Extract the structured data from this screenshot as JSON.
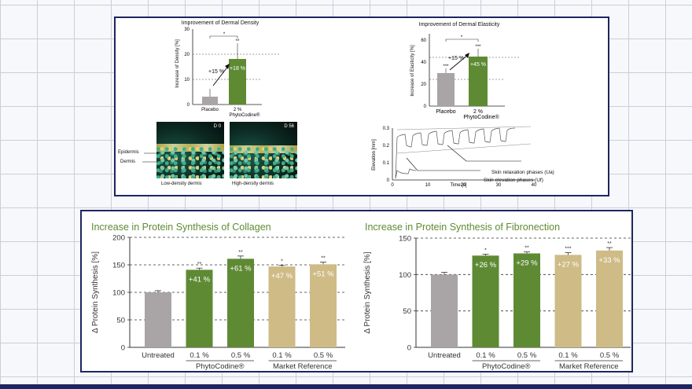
{
  "top": {
    "density": {
      "title": "Improvement of Dermal Density",
      "ylabel": "Increase of Density [%]",
      "yticks": [
        "0",
        "10",
        "20",
        "30"
      ],
      "cat1": "Placebo",
      "cat2a": "2 %",
      "cat2b": "PhytoCodine®",
      "bar_label": "+18 %",
      "arrow_label": "+15 %",
      "sig_top": "*",
      "sig_bar": "**"
    },
    "elasticity": {
      "title": "Improvement of Dermal Elasticity",
      "ylabel": "Increase of Elasticity [%]",
      "yticks": [
        "0",
        "20",
        "40",
        "60"
      ],
      "cat1": "Placebo",
      "cat2a": "2 %",
      "cat2b": "PhytoCodine®",
      "bar_label": "+45 %",
      "arrow_label": "+15 %",
      "sig_top": "*",
      "sig_bar1": "***",
      "sig_bar2": "***"
    },
    "micro": {
      "tag0": "D 0",
      "tag56": "D 56",
      "label_epidermis": "Epidermis",
      "label_dermis": "Dermis",
      "caption_low": "Low-density dermis",
      "caption_high": "High-density dermis"
    },
    "wave": {
      "ylabel": "Elevation [mm]",
      "xlabel": "Time [s]",
      "yticks": [
        "0",
        "0.1",
        "0.2",
        "0.3"
      ],
      "xticks": [
        "0",
        "10",
        "20",
        "30",
        "40"
      ],
      "annot1": "Skin relaxation phases (Ua)",
      "annot2": "Skin elevation phases (Uf)"
    }
  },
  "bottom": {
    "collagen_title": "Increase in Protein Synthesis of Collagen",
    "fibronectin_title": "Increase in Protein Synthesis of Fibronection",
    "ylabel": "Δ Protein Synthesis [%]",
    "categories": [
      "Untreated",
      "0.1 %",
      "0.5 %",
      "0.1 %",
      "0.5 %"
    ],
    "group1": "PhytoCodine®",
    "group2": "Market Reference"
  },
  "colors": {
    "frame": "#1d2660",
    "title_green": "#5f8a34",
    "bar_gray": "#a9a4a6",
    "bar_green": "#5f8a34",
    "bar_tan": "#cfbb86"
  },
  "chart_data": [
    {
      "type": "bar",
      "title": "Improvement of Dermal Density",
      "ylabel": "Increase of Density [%]",
      "categories": [
        "Placebo",
        "2 % PhytoCodine®"
      ],
      "values": [
        3,
        18
      ],
      "errors": [
        3,
        6
      ],
      "ylim": [
        0,
        30
      ],
      "annotations": [
        "+18 %",
        "+15 %"
      ]
    },
    {
      "type": "bar",
      "title": "Improvement of Dermal Elasticity",
      "ylabel": "Increase of Elasticity [%]",
      "categories": [
        "Placebo",
        "2 % PhytoCodine®"
      ],
      "values": [
        30,
        45
      ],
      "errors": [
        3,
        7
      ],
      "ylim": [
        0,
        65
      ],
      "annotations": [
        "+45 %",
        "+15 %"
      ]
    },
    {
      "type": "line",
      "xlabel": "Time [s]",
      "ylabel": "Elevation [mm]",
      "xlim": [
        0,
        40
      ],
      "ylim": [
        0,
        0.3
      ],
      "cycles": 8,
      "annotations": [
        "Skin relaxation phases (Ua)",
        "Skin elevation phases (Uf)"
      ]
    },
    {
      "type": "bar",
      "title": "Increase in Protein Synthesis of Collagen",
      "ylabel": "Δ Protein Synthesis [%]",
      "categories": [
        "Untreated",
        "0.1 %",
        "0.5 %",
        "0.1 %",
        "0.5 %"
      ],
      "values": [
        100,
        141,
        161,
        147,
        151
      ],
      "errors": [
        3,
        3,
        5,
        2,
        4
      ],
      "labels": [
        "",
        "+41 %",
        "+61 %",
        "+47 %",
        "+51 %"
      ],
      "sig": [
        "",
        "**",
        "**",
        "*",
        "**"
      ],
      "ylim": [
        0,
        200
      ],
      "yticks": [
        0,
        50,
        100,
        150,
        200
      ]
    },
    {
      "type": "bar",
      "title": "Increase in Protein Synthesis of Fibronection",
      "ylabel": "Δ Protein Synthesis [%]",
      "categories": [
        "Untreated",
        "0.1 %",
        "0.5 %",
        "0.1 %",
        "0.5 %"
      ],
      "values": [
        100,
        126,
        129,
        127,
        133
      ],
      "errors": [
        3,
        2,
        2,
        3,
        4
      ],
      "labels": [
        "",
        "+26 %",
        "+29 %",
        "+27 %",
        "+33 %"
      ],
      "sig": [
        "",
        "*",
        "**",
        "***",
        "**"
      ],
      "ylim": [
        0,
        150
      ],
      "yticks": [
        0,
        50,
        100,
        150
      ]
    }
  ]
}
